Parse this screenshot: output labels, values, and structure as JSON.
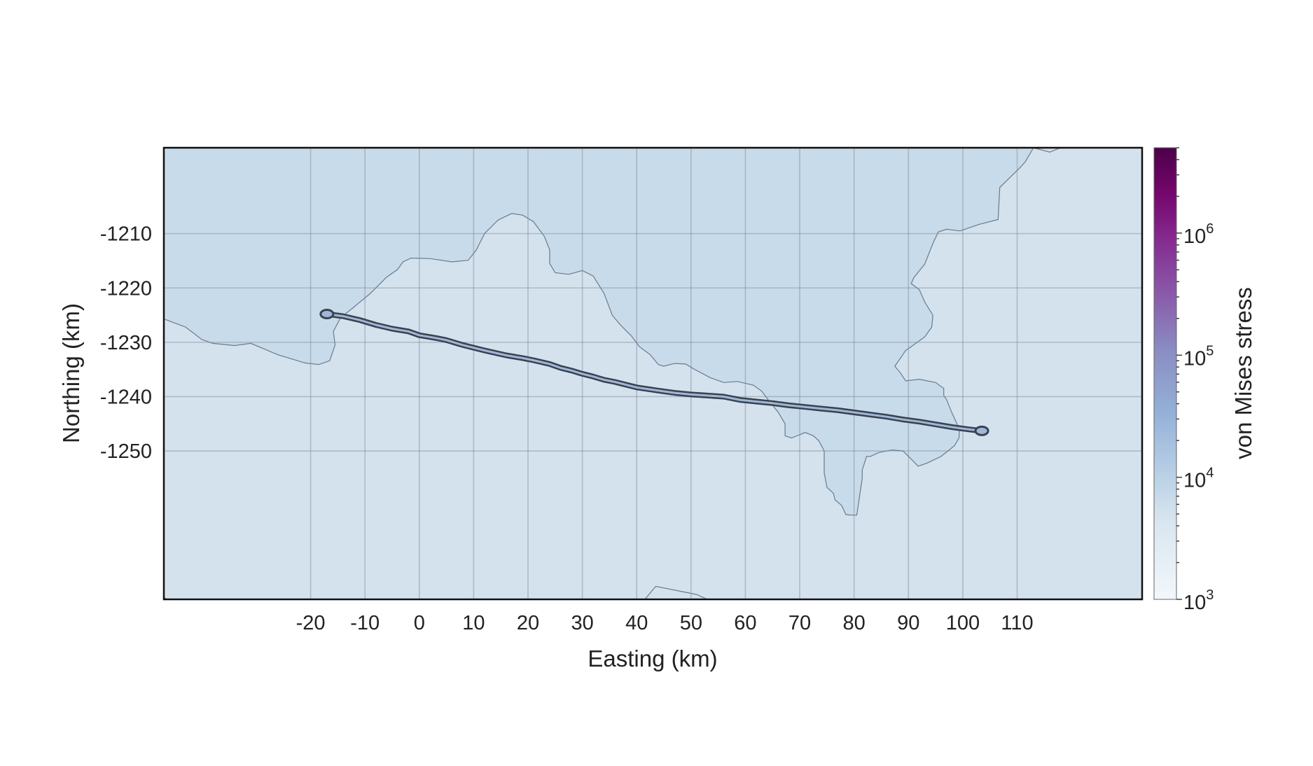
{
  "map": {
    "xlabel": "Easting (km)",
    "ylabel": "Northing (km)",
    "x_ticks": [
      -20,
      -10,
      0,
      10,
      20,
      30,
      40,
      50,
      60,
      70,
      80,
      90,
      100,
      110
    ],
    "y_ticks": [
      -1210,
      -1220,
      -1230,
      -1240,
      -1250
    ],
    "xlim": [
      -47,
      133
    ],
    "ylim": [
      -1277.3,
      -1194.2
    ],
    "grid": true,
    "colors": {
      "background_region": "#d4e2ee",
      "shaded_region": "#c8dbea",
      "region_outline": "#6b7b8a",
      "gridline": "#7d8896",
      "frame": "#111111",
      "track_edge": "#3a4250",
      "track_fill": "#9fb8d6"
    },
    "region_boundary_west": [
      [
        -47,
        -1225.7
      ],
      [
        -43,
        -1227.2
      ],
      [
        -40,
        -1229.5
      ],
      [
        -38,
        -1230.2
      ],
      [
        -34,
        -1230.6
      ],
      [
        -31,
        -1230.2
      ],
      [
        -26,
        -1232.3
      ],
      [
        -21,
        -1233.8
      ],
      [
        -18.5,
        -1234.1
      ],
      [
        -16.5,
        -1233.4
      ],
      [
        -15.5,
        -1230.5
      ],
      [
        -15.8,
        -1228
      ],
      [
        -14.5,
        -1225.5
      ],
      [
        -12,
        -1223.5
      ],
      [
        -9,
        -1221
      ],
      [
        -6,
        -1218
      ],
      [
        -4,
        -1216.6
      ],
      [
        -3,
        -1215.2
      ],
      [
        -1.5,
        -1214.5
      ],
      [
        2,
        -1214.6
      ],
      [
        6,
        -1215.2
      ],
      [
        9,
        -1214.9
      ],
      [
        10.5,
        -1213
      ],
      [
        12,
        -1210
      ],
      [
        14.5,
        -1207.5
      ],
      [
        17,
        -1206.3
      ],
      [
        19,
        -1206.6
      ],
      [
        21,
        -1207.8
      ],
      [
        23,
        -1210.5
      ],
      [
        24,
        -1213
      ],
      [
        24,
        -1215.5
      ],
      [
        25,
        -1217.2
      ],
      [
        27.5,
        -1217.5
      ],
      [
        30,
        -1216.8
      ],
      [
        32,
        -1217.8
      ],
      [
        34,
        -1221
      ],
      [
        35.5,
        -1225
      ],
      [
        37,
        -1226.8
      ],
      [
        39,
        -1228.8
      ],
      [
        40.5,
        -1230.8
      ],
      [
        42.5,
        -1232.3
      ],
      [
        44,
        -1234.1
      ],
      [
        45,
        -1234.4
      ],
      [
        47,
        -1233.9
      ],
      [
        49,
        -1234
      ],
      [
        50.5,
        -1234.9
      ],
      [
        53.5,
        -1236.5
      ],
      [
        56,
        -1237.4
      ],
      [
        58.5,
        -1237.2
      ],
      [
        61.5,
        -1237.9
      ],
      [
        63,
        -1239
      ],
      [
        64.5,
        -1241
      ],
      [
        66,
        -1242.8
      ],
      [
        67.3,
        -1245
      ],
      [
        67.3,
        -1247.2
      ],
      [
        68.5,
        -1247.6
      ],
      [
        71,
        -1246.6
      ],
      [
        72.5,
        -1247.2
      ],
      [
        73.5,
        -1248.1
      ],
      [
        74.5,
        -1250
      ],
      [
        74.5,
        -1254
      ],
      [
        75,
        -1256.7
      ],
      [
        76.2,
        -1257.8
      ],
      [
        76.5,
        -1259
      ],
      [
        77.7,
        -1260
      ],
      [
        78.5,
        -1261.7
      ],
      [
        79.5,
        -1261.8
      ],
      [
        80.5,
        -1261.8
      ],
      [
        81.5,
        -1255
      ],
      [
        81.5,
        -1253.5
      ],
      [
        82.3,
        -1251
      ],
      [
        83,
        -1251
      ],
      [
        84.5,
        -1250.3
      ],
      [
        87,
        -1249.8
      ],
      [
        89,
        -1250
      ],
      [
        91,
        -1252
      ],
      [
        91.8,
        -1252.8
      ],
      [
        93.5,
        -1252.2
      ],
      [
        96,
        -1251
      ],
      [
        97.5,
        -1249.8
      ],
      [
        98.5,
        -1249
      ],
      [
        99.3,
        -1247.6
      ],
      [
        99.4,
        -1246
      ],
      [
        98,
        -1243
      ],
      [
        97,
        -1240.5
      ],
      [
        96.5,
        -1239.8
      ],
      [
        96.5,
        -1238.5
      ],
      [
        95,
        -1237.4
      ],
      [
        92,
        -1236.8
      ],
      [
        89.5,
        -1237.1
      ],
      [
        88.5,
        -1235.6
      ],
      [
        87.5,
        -1234.4
      ],
      [
        89.5,
        -1231.5
      ],
      [
        90.5,
        -1230.8
      ],
      [
        93,
        -1229
      ],
      [
        94.3,
        -1227.2
      ],
      [
        94.5,
        -1225
      ],
      [
        93,
        -1222.6
      ],
      [
        92,
        -1220.3
      ],
      [
        90.5,
        -1219.2
      ],
      [
        91,
        -1218.1
      ],
      [
        93,
        -1215.6
      ],
      [
        94.5,
        -1211.8
      ],
      [
        95.5,
        -1209.7
      ],
      [
        97,
        -1209.2
      ],
      [
        99.5,
        -1209.5
      ],
      [
        103,
        -1208.3
      ],
      [
        106.5,
        -1207.4
      ],
      [
        106.8,
        -1201.5
      ],
      [
        110.5,
        -1197.9
      ],
      [
        111.5,
        -1196.8
      ],
      [
        113,
        -1194.2
      ]
    ],
    "region_boundary_east_cap": [
      [
        113,
        -1194.2
      ],
      [
        116,
        -1195
      ],
      [
        118,
        -1194.2
      ]
    ],
    "region_outline_south": [
      [
        -47,
        -1276.9
      ],
      [
        -46.5,
        -1277.3
      ]
    ],
    "region_outline_south_center": [
      [
        41.5,
        -1277.3
      ],
      [
        43.5,
        -1274.9
      ],
      [
        51,
        -1276.4
      ],
      [
        53,
        -1277.3
      ]
    ],
    "track": [
      [
        -17,
        -1224.8
      ],
      [
        -14,
        -1225.2
      ],
      [
        -11,
        -1225.9
      ],
      [
        -8,
        -1226.8
      ],
      [
        -5,
        -1227.5
      ],
      [
        -2,
        -1228
      ],
      [
        0,
        -1228.7
      ],
      [
        3,
        -1229.2
      ],
      [
        5,
        -1229.6
      ],
      [
        8,
        -1230.5
      ],
      [
        12,
        -1231.5
      ],
      [
        16,
        -1232.4
      ],
      [
        19,
        -1232.9
      ],
      [
        21,
        -1233.3
      ],
      [
        24,
        -1234
      ],
      [
        26,
        -1234.7
      ],
      [
        28,
        -1235.2
      ],
      [
        30,
        -1235.8
      ],
      [
        32,
        -1236.3
      ],
      [
        34,
        -1236.9
      ],
      [
        36,
        -1237.3
      ],
      [
        38,
        -1237.8
      ],
      [
        40,
        -1238.3
      ],
      [
        42,
        -1238.6
      ],
      [
        44,
        -1238.9
      ],
      [
        47,
        -1239.3
      ],
      [
        50,
        -1239.6
      ],
      [
        53,
        -1239.8
      ],
      [
        56,
        -1240
      ],
      [
        59,
        -1240.6
      ],
      [
        62,
        -1240.9
      ],
      [
        65,
        -1241.2
      ],
      [
        68,
        -1241.6
      ],
      [
        71,
        -1241.9
      ],
      [
        74,
        -1242.2
      ],
      [
        77,
        -1242.5
      ],
      [
        80,
        -1242.9
      ],
      [
        83,
        -1243.3
      ],
      [
        86,
        -1243.7
      ],
      [
        89,
        -1244.2
      ],
      [
        92,
        -1244.6
      ],
      [
        95,
        -1245.1
      ],
      [
        98,
        -1245.6
      ],
      [
        101,
        -1246
      ],
      [
        103.5,
        -1246.3
      ]
    ],
    "track_stress_pa": 15000
  },
  "colorbar": {
    "label": "von Mises stress",
    "scale": "log",
    "range": [
      1000,
      5000000
    ],
    "ticks": [
      {
        "base": "10",
        "exp": "3",
        "value": 1000
      },
      {
        "base": "10",
        "exp": "4",
        "value": 10000
      },
      {
        "base": "10",
        "exp": "5",
        "value": 100000
      },
      {
        "base": "10",
        "exp": "6",
        "value": 1000000
      }
    ],
    "gradient": [
      {
        "stop": 0.0,
        "color": "#f3f7fa"
      },
      {
        "stop": 0.17,
        "color": "#d9e6f0"
      },
      {
        "stop": 0.3,
        "color": "#b2cbe3"
      },
      {
        "stop": 0.42,
        "color": "#93afd7"
      },
      {
        "stop": 0.55,
        "color": "#8a8dc3"
      },
      {
        "stop": 0.67,
        "color": "#8a5cab"
      },
      {
        "stop": 0.8,
        "color": "#85298f"
      },
      {
        "stop": 0.9,
        "color": "#75066d"
      },
      {
        "stop": 1.0,
        "color": "#4d0049"
      }
    ]
  }
}
